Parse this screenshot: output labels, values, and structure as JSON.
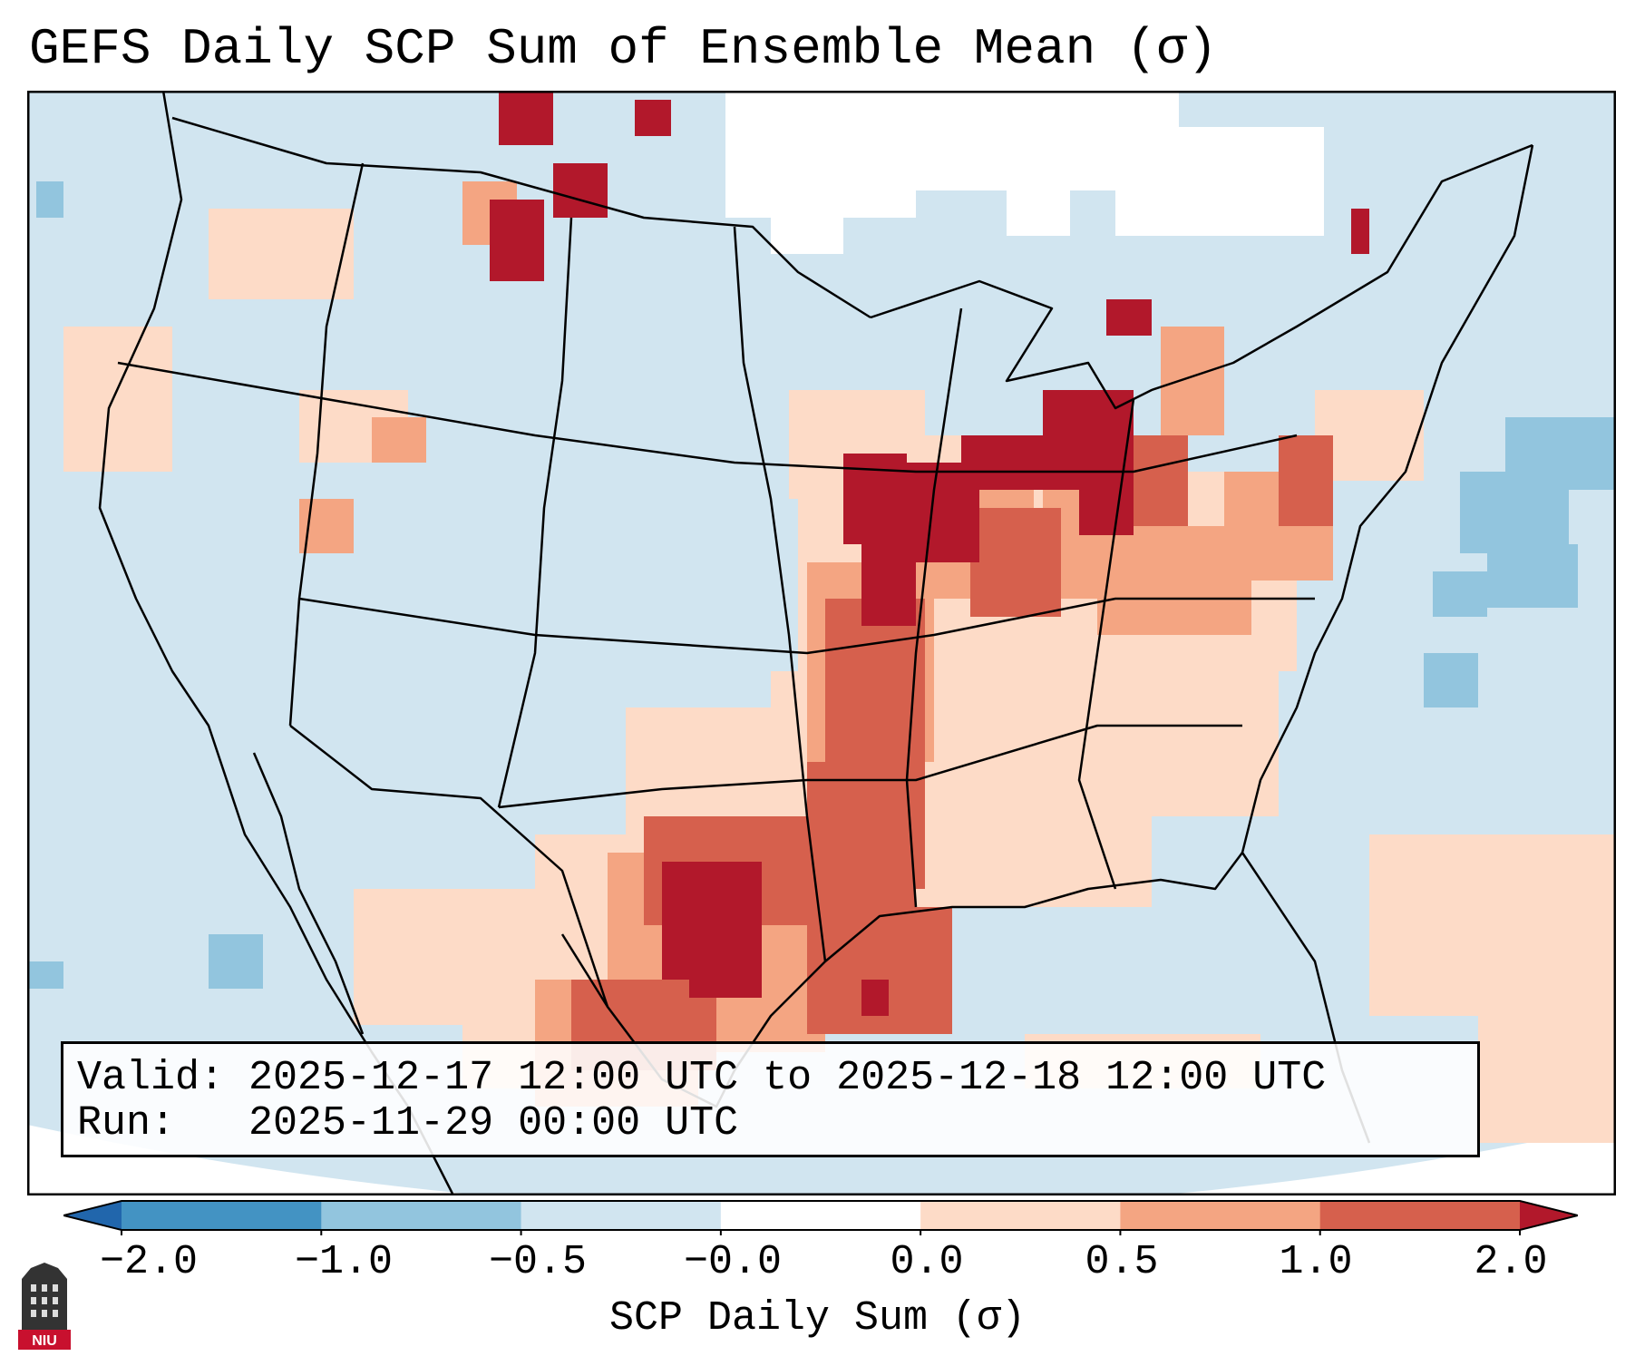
{
  "figure": {
    "title": "GEFS Daily SCP Sum of Ensemble Mean (σ)"
  },
  "info_box": {
    "valid_line": "Valid: 2025-12-17 12:00 UTC to 2025-12-18 12:00 UTC",
    "run_line": "Run:   2025-11-29 00:00 UTC"
  },
  "colorbar": {
    "label": "SCP Daily Sum (σ)",
    "ticks": [
      "−2.0",
      "−1.0",
      "−0.5",
      "−0.0",
      "0.0",
      "0.5",
      "1.0",
      "2.0"
    ],
    "bins": [
      {
        "range": "below -2.0",
        "color": "#2166ac"
      },
      {
        "range": "-2.0 to -1.0",
        "color": "#4393c3"
      },
      {
        "range": "-1.0 to -0.5",
        "color": "#92c5de"
      },
      {
        "range": "-0.5 to -0.0",
        "color": "#d1e5f0"
      },
      {
        "range": "-0.0 to 0.0",
        "color": "#ffffff"
      },
      {
        "range": "0.0 to 0.5",
        "color": "#fddbc7"
      },
      {
        "range": "0.5 to 1.0",
        "color": "#f4a582"
      },
      {
        "range": "1.0 to 2.0",
        "color": "#d6604d"
      },
      {
        "range": "above 2.0",
        "color": "#b2182b"
      }
    ]
  },
  "map": {
    "projection": "Lambert conformal, CONUS",
    "highlight_regions": [
      {
        "region": "Upper Midwest (MN/WI/IA)",
        "level": "above 2.0"
      },
      {
        "region": "Texas / Oklahoma",
        "level": "1.0 to 2.0+"
      },
      {
        "region": "Northern Montana / Alberta border",
        "level": "above 2.0"
      },
      {
        "region": "Michigan / Great Lakes",
        "level": "above 2.0"
      },
      {
        "region": "Western Atlantic",
        "level": "-1.0 to -0.5"
      }
    ]
  },
  "logo": {
    "text": "NIU",
    "color": "#c8102e"
  }
}
